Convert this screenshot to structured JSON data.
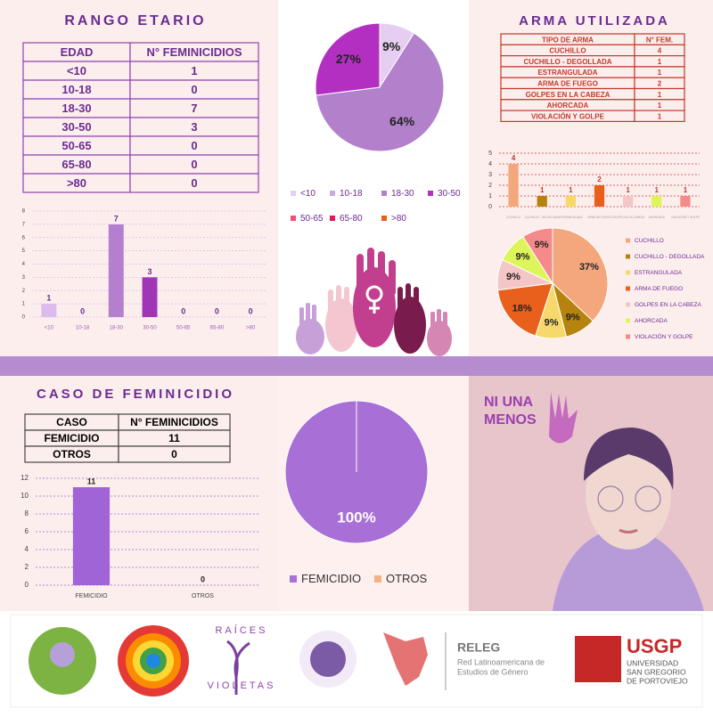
{
  "titles": {
    "age": "RANGO ETARIO",
    "weapon": "ARMA UTILIZADA",
    "case": "CASO DE FEMINICIDIO"
  },
  "tables": {
    "age": {
      "header": [
        "EDAD",
        "N° FEMINICIDIOS"
      ],
      "rows": [
        [
          "<10",
          "1"
        ],
        [
          "10-18",
          "0"
        ],
        [
          "18-30",
          "7"
        ],
        [
          "30-50",
          "3"
        ],
        [
          "50-65",
          "0"
        ],
        [
          "65-80",
          "0"
        ],
        [
          ">80",
          "0"
        ]
      ]
    },
    "weapon": {
      "header": [
        "TIPO DE ARMA",
        "N° FEM."
      ],
      "rows": [
        [
          "CUCHILLO",
          "4"
        ],
        [
          "CUCHILLO - DEGOLLADA",
          "1"
        ],
        [
          "ESTRANGULADA",
          "1"
        ],
        [
          "ARMA DE FUEGO",
          "2"
        ],
        [
          "GOLPES EN LA CABEZA",
          "1"
        ],
        [
          "AHORCADA",
          "1"
        ],
        [
          "VIOLACIÓN Y GOLPE",
          "1"
        ]
      ]
    },
    "case": {
      "header": [
        "CASO",
        "N° FEMINICIDIOS"
      ],
      "rows": [
        [
          "FEMICIDIO",
          "11"
        ],
        [
          "OTROS",
          "0"
        ]
      ]
    }
  },
  "chart_data": [
    {
      "type": "bar",
      "categories": [
        "<10",
        "10-18",
        "18-30",
        "30-50",
        "50-65",
        "65-80",
        ">80"
      ],
      "values": [
        1,
        0,
        7,
        3,
        0,
        0,
        0
      ],
      "colors": [
        "#dcbcec",
        "#cfa6e2",
        "#b57fcf",
        "#a035b5",
        "#ee4e7a",
        "#e0195b",
        "#e8601c"
      ],
      "ylim": [
        0,
        8
      ],
      "yticks": [
        0,
        1,
        2,
        3,
        4,
        5,
        6,
        7,
        8
      ],
      "grid": true
    },
    {
      "type": "pie",
      "categories": [
        "<10",
        "10-18",
        "18-30",
        "30-50",
        "50-65",
        "65-80",
        ">80"
      ],
      "values": [
        9,
        0,
        64,
        27,
        0,
        0,
        0
      ],
      "value_labels": [
        "9%",
        null,
        "64%",
        "27%",
        null,
        null,
        null
      ],
      "colors": [
        "#e6cdf2",
        "#cfa6e2",
        "#b380cc",
        "#b22fc2",
        "#ee4e7a",
        "#e0195b",
        "#e8601c"
      ]
    },
    {
      "type": "bar",
      "categories": [
        "CUCHILLO",
        "CUCHILLO - DEGOLLADA",
        "ESTRANGULADA",
        "ARMA DE FUEGO",
        "GOLPES EN LA CABEZA",
        "AHORCADA",
        "VIOLACIÓN Y GOLPE"
      ],
      "values": [
        4,
        1,
        1,
        2,
        1,
        1,
        1
      ],
      "colors": [
        "#f4a77c",
        "#b5830e",
        "#f7d96b",
        "#e8601c",
        "#f4c6c6",
        "#ddf55a",
        "#f48a8a"
      ],
      "ylim": [
        0,
        5
      ],
      "yticks": [
        0,
        1,
        2,
        3,
        4,
        5
      ],
      "grid": true
    },
    {
      "type": "pie",
      "categories": [
        "CUCHILLO",
        "CUCHILLO - DEGOLLADA",
        "ESTRANGULADA",
        "ARMA DE FUEGO",
        "GOLPES EN LA CABEZA",
        "AHORCADA",
        "VIOLACIÓN Y GOLPE"
      ],
      "values": [
        37,
        9,
        9,
        18,
        9,
        9,
        9
      ],
      "value_labels": [
        "37%",
        "9%",
        "9%",
        "18%",
        "9%",
        "9%",
        "9%"
      ],
      "colors": [
        "#f4a77c",
        "#b5830e",
        "#f7d96b",
        "#e8601c",
        "#f4c6c6",
        "#ddf55a",
        "#f48a8a"
      ]
    },
    {
      "type": "bar",
      "categories": [
        "FEMICIDIO",
        "OTROS"
      ],
      "values": [
        11,
        0
      ],
      "colors": [
        "#a064d6",
        "#f4b183"
      ],
      "ylim": [
        0,
        12
      ],
      "yticks": [
        0,
        2,
        4,
        6,
        8,
        10,
        12
      ],
      "grid": true
    },
    {
      "type": "pie",
      "categories": [
        "FEMICIDIO",
        "OTROS"
      ],
      "values": [
        100,
        0
      ],
      "value_labels": [
        "100%",
        null
      ],
      "colors": [
        "#a86fd6",
        "#f4b183"
      ]
    }
  ],
  "decor": {
    "ni_una": "NI UNA",
    "menos": "MENOS"
  },
  "footer": {
    "raices": [
      "RAÍCES",
      "VIOLETAS"
    ],
    "releg": "RELEG",
    "releg_sub": [
      "Red Latinoamericana de",
      "Estudios de Género"
    ],
    "usgp": "USGP",
    "usgp_sub": [
      "UNIVERSIDAD",
      "SAN GREGORIO",
      "DE PORTOVIEJO"
    ]
  }
}
